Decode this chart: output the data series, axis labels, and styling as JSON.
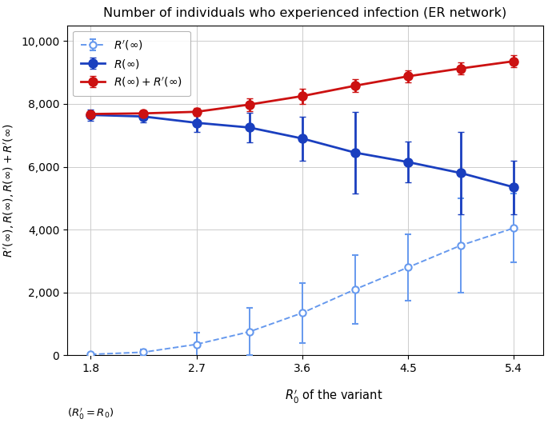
{
  "title": "Number of individuals who experienced infection (ER network)",
  "xlabel": "$R_0'$ of the variant",
  "xlabel2": "$(R_0' = R_0)$",
  "ylabel": "$R'(\\infty), R(\\infty), R(\\infty) + R'(\\infty)$",
  "x": [
    1.8,
    2.25,
    2.7,
    3.15,
    3.6,
    4.05,
    4.5,
    4.95,
    5.4
  ],
  "x_ticks": [
    1.8,
    2.7,
    3.6,
    4.5,
    5.4
  ],
  "x_tick_labels": [
    "1.8",
    "2.7",
    "3.6",
    "4.5",
    "5.4"
  ],
  "R_prime": [
    30,
    100,
    350,
    750,
    1350,
    2100,
    2800,
    3500,
    4050
  ],
  "R_prime_err_lo": [
    30,
    100,
    380,
    750,
    950,
    1100,
    1050,
    1500,
    1100
  ],
  "R_prime_err_hi": [
    30,
    100,
    380,
    750,
    950,
    1100,
    1050,
    1500,
    1100
  ],
  "R": [
    7650,
    7600,
    7400,
    7250,
    6900,
    6450,
    6150,
    5800,
    5350
  ],
  "R_err_lo": [
    180,
    180,
    300,
    480,
    700,
    1300,
    650,
    1300,
    850
  ],
  "R_err_hi": [
    180,
    180,
    300,
    480,
    700,
    1300,
    650,
    1300,
    850
  ],
  "R_total": [
    7680,
    7700,
    7750,
    7980,
    8250,
    8580,
    8880,
    9130,
    9360
  ],
  "R_total_err_lo": [
    100,
    100,
    120,
    200,
    240,
    200,
    200,
    200,
    200
  ],
  "R_total_err_hi": [
    100,
    100,
    120,
    200,
    240,
    200,
    200,
    200,
    200
  ],
  "color_dashed": "#6699ee",
  "color_blue": "#1a3fbf",
  "color_red": "#cc1111",
  "ylim": [
    0,
    10500
  ],
  "yticks": [
    0,
    2000,
    4000,
    6000,
    8000,
    10000
  ],
  "ytick_labels": [
    "0",
    "2,000",
    "4,000",
    "6,000",
    "8,000",
    "10,000"
  ],
  "legend_labels": [
    "$R'(\\infty)$",
    "$R(\\infty)$",
    "$R(\\infty) + R'(\\infty)$"
  ]
}
